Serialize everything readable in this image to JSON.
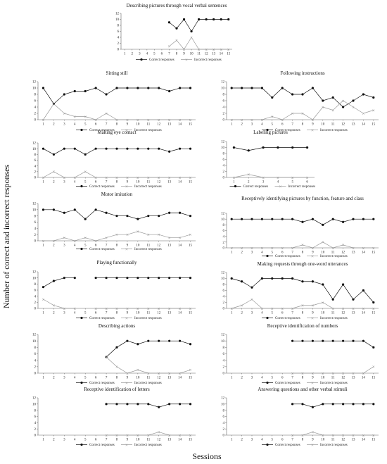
{
  "figure": {
    "ylabel": "Number of correct and incorrect responses",
    "xlabel": "Sessions"
  },
  "colors": {
    "correct": "#111111",
    "incorrect": "#999999",
    "axis": "#666666"
  },
  "chart_data": [
    {
      "type": "line",
      "title": "Describing pictures through vocal verbal sentences",
      "x": [
        1,
        2,
        3,
        4,
        5,
        6,
        7,
        8,
        9,
        10,
        11,
        12,
        13,
        14,
        15
      ],
      "yticks": [
        0,
        2,
        4,
        6,
        8,
        10,
        12
      ],
      "ylim": [
        0,
        12
      ],
      "series": [
        {
          "name": "Correct responses",
          "values": [
            null,
            null,
            null,
            null,
            null,
            null,
            9,
            7,
            10,
            6,
            10,
            10,
            10,
            10,
            10
          ]
        },
        {
          "name": "Incorrect responses",
          "values": [
            null,
            null,
            null,
            null,
            null,
            null,
            1,
            3,
            0,
            4,
            0,
            0,
            0,
            0,
            0
          ]
        }
      ]
    },
    {
      "type": "line",
      "title": "Sitting still",
      "x": [
        1,
        2,
        3,
        4,
        5,
        6,
        7,
        8,
        9,
        10,
        11,
        12,
        13,
        14,
        15
      ],
      "yticks": [
        0,
        2,
        4,
        6,
        8,
        10,
        12
      ],
      "ylim": [
        0,
        12
      ],
      "series": [
        {
          "name": "Correct responses",
          "values": [
            10,
            5,
            8,
            9,
            9,
            10,
            8,
            10,
            10,
            10,
            10,
            10,
            9,
            10,
            10
          ]
        },
        {
          "name": "Incorrect responses",
          "values": [
            0,
            5,
            2,
            1,
            1,
            0,
            2,
            0,
            0,
            0,
            0,
            0,
            0,
            0,
            0
          ]
        }
      ]
    },
    {
      "type": "line",
      "title": "Following instructions",
      "x": [
        1,
        2,
        3,
        4,
        5,
        6,
        7,
        8,
        9,
        10,
        11,
        12,
        13,
        14,
        15
      ],
      "yticks": [
        0,
        2,
        4,
        6,
        8,
        10,
        12
      ],
      "ylim": [
        0,
        12
      ],
      "series": [
        {
          "name": "Correct responses",
          "values": [
            10,
            10,
            10,
            10,
            7,
            10,
            8,
            8,
            10,
            6,
            7,
            4,
            6,
            8,
            7
          ]
        },
        {
          "name": "Incorrect responses",
          "values": [
            0,
            0,
            0,
            0,
            1,
            0,
            2,
            2,
            0,
            4,
            3,
            6,
            4,
            2,
            3
          ]
        }
      ]
    },
    {
      "type": "line",
      "title": "Making eye contact",
      "x": [
        1,
        2,
        3,
        4,
        5,
        6,
        7,
        8,
        9,
        10,
        11,
        12,
        13,
        14,
        15
      ],
      "yticks": [
        0,
        2,
        4,
        6,
        8,
        10,
        12
      ],
      "ylim": [
        0,
        12
      ],
      "series": [
        {
          "name": "Correct responses",
          "values": [
            10,
            8,
            10,
            10,
            8,
            10,
            10,
            10,
            10,
            10,
            10,
            10,
            9,
            10,
            10
          ]
        },
        {
          "name": "Incorrect responses",
          "values": [
            0,
            2,
            0,
            0,
            2,
            0,
            0,
            0,
            0,
            0,
            0,
            0,
            0,
            0,
            0
          ]
        }
      ]
    },
    {
      "type": "line",
      "title": "Labeling pictures",
      "x": [
        1,
        2,
        3,
        4,
        5,
        6
      ],
      "yticks": [
        0,
        2,
        4,
        6,
        8,
        10,
        12
      ],
      "ylim": [
        0,
        12
      ],
      "series": [
        {
          "name": "Correct responses",
          "values": [
            10,
            9,
            10,
            10,
            10,
            10
          ]
        },
        {
          "name": "Incorrect responses",
          "values": [
            0,
            1,
            0,
            0,
            0,
            0
          ]
        }
      ]
    },
    {
      "type": "line",
      "title": "Motor imitation",
      "x": [
        1,
        2,
        3,
        4,
        5,
        6,
        7,
        8,
        9,
        10,
        11,
        12,
        13,
        14,
        15
      ],
      "yticks": [
        0,
        2,
        4,
        6,
        8,
        10,
        12
      ],
      "ylim": [
        0,
        12
      ],
      "series": [
        {
          "name": "Correct responses",
          "values": [
            10,
            10,
            9,
            10,
            7,
            10,
            9,
            8,
            8,
            7,
            8,
            8,
            9,
            9,
            8
          ]
        },
        {
          "name": "Incorrect responses",
          "values": [
            0,
            0,
            1,
            0,
            1,
            0,
            1,
            2,
            2,
            3,
            2,
            2,
            1,
            1,
            2
          ]
        }
      ]
    },
    {
      "type": "line",
      "title": "Receptively identifying pictures by function, feature and class",
      "x": [
        1,
        2,
        3,
        4,
        5,
        6,
        7,
        8,
        9,
        10,
        11,
        12,
        13,
        14,
        15
      ],
      "yticks": [
        0,
        2,
        4,
        6,
        8,
        10,
        12
      ],
      "ylim": [
        0,
        12
      ],
      "series": [
        {
          "name": "Correct responses",
          "values": [
            10,
            10,
            10,
            10,
            10,
            10,
            10,
            9,
            10,
            8,
            10,
            9,
            10,
            10,
            10
          ]
        },
        {
          "name": "Incorrect responses",
          "values": [
            0,
            0,
            0,
            0,
            0,
            0,
            0,
            1,
            0,
            2,
            0,
            1,
            0,
            0,
            0
          ]
        }
      ]
    },
    {
      "type": "line",
      "title": "Playing functionally",
      "x": [
        1,
        2,
        3,
        4,
        5,
        6,
        7,
        8,
        9,
        10,
        11,
        12,
        13,
        14,
        15
      ],
      "yticks": [
        0,
        2,
        4,
        6,
        8,
        10,
        12
      ],
      "ylim": [
        0,
        12
      ],
      "series": [
        {
          "name": "Correct responses",
          "values": [
            7,
            9,
            10,
            10,
            null,
            10,
            10,
            10,
            10,
            10,
            10,
            10,
            10,
            10,
            10
          ]
        },
        {
          "name": "Incorrect responses",
          "values": [
            3,
            1,
            0,
            0,
            null,
            0,
            0,
            0,
            0,
            0,
            0,
            0,
            0,
            0,
            0
          ]
        }
      ]
    },
    {
      "type": "line",
      "title": "Making requests through one-word utterances",
      "x": [
        1,
        2,
        3,
        4,
        5,
        6,
        7,
        8,
        9,
        10,
        11,
        12,
        13,
        14,
        15
      ],
      "yticks": [
        0,
        2,
        4,
        6,
        8,
        10,
        12
      ],
      "ylim": [
        0,
        12
      ],
      "series": [
        {
          "name": "Correct responses",
          "values": [
            10,
            9,
            7,
            10,
            10,
            10,
            10,
            9,
            9,
            8,
            3,
            8,
            3,
            6,
            2
          ]
        },
        {
          "name": "Incorrect responses",
          "values": [
            0,
            1,
            3,
            0,
            0,
            0,
            0,
            1,
            1,
            2,
            0,
            0,
            0,
            0,
            0
          ]
        }
      ]
    },
    {
      "type": "line",
      "title": "Describing actions",
      "x": [
        1,
        2,
        3,
        4,
        5,
        6,
        7,
        8,
        9,
        10,
        11,
        12,
        13,
        14,
        15
      ],
      "yticks": [
        0,
        2,
        4,
        6,
        8,
        10,
        12
      ],
      "ylim": [
        0,
        12
      ],
      "series": [
        {
          "name": "Correct responses",
          "values": [
            null,
            null,
            null,
            null,
            null,
            null,
            5,
            8,
            10,
            9,
            10,
            10,
            10,
            10,
            9
          ]
        },
        {
          "name": "Incorrect responses",
          "values": [
            null,
            null,
            null,
            null,
            null,
            null,
            5,
            2,
            0,
            1,
            0,
            0,
            0,
            0,
            1
          ]
        }
      ]
    },
    {
      "type": "line",
      "title": "Receptive identification of numbers",
      "x": [
        1,
        2,
        3,
        4,
        5,
        6,
        7,
        8,
        9,
        10,
        11,
        12,
        13,
        14,
        15
      ],
      "yticks": [
        0,
        2,
        4,
        6,
        8,
        10,
        12
      ],
      "ylim": [
        0,
        12
      ],
      "series": [
        {
          "name": "Correct responses",
          "values": [
            null,
            null,
            null,
            null,
            null,
            null,
            10,
            10,
            10,
            10,
            10,
            10,
            10,
            10,
            8
          ]
        },
        {
          "name": "Incorrect responses",
          "values": [
            null,
            null,
            null,
            null,
            null,
            null,
            0,
            0,
            0,
            0,
            0,
            0,
            0,
            0,
            2
          ]
        }
      ]
    },
    {
      "type": "line",
      "title": "Receptive identification of letters",
      "x": [
        1,
        2,
        3,
        4,
        5,
        6,
        7,
        8,
        9,
        10,
        11,
        12,
        13,
        14,
        15
      ],
      "yticks": [
        0,
        2,
        4,
        6,
        8,
        10,
        12
      ],
      "ylim": [
        0,
        12
      ],
      "series": [
        {
          "name": "Correct responses",
          "values": [
            null,
            null,
            null,
            null,
            null,
            null,
            10,
            10,
            10,
            10,
            10,
            9,
            10,
            10,
            10
          ]
        },
        {
          "name": "Incorrect responses",
          "values": [
            null,
            null,
            null,
            null,
            null,
            null,
            0,
            0,
            0,
            0,
            0,
            1,
            0,
            0,
            0
          ]
        }
      ]
    },
    {
      "type": "line",
      "title": "Answering questions and other verbal stimuli",
      "x": [
        1,
        2,
        3,
        4,
        5,
        6,
        7,
        8,
        9,
        10,
        11,
        12,
        13,
        14,
        15
      ],
      "yticks": [
        0,
        2,
        4,
        6,
        8,
        10,
        12
      ],
      "ylim": [
        0,
        12
      ],
      "series": [
        {
          "name": "Correct responses",
          "values": [
            null,
            null,
            null,
            null,
            null,
            null,
            10,
            10,
            9,
            10,
            10,
            10,
            10,
            10,
            10
          ]
        },
        {
          "name": "Incorrect responses",
          "values": [
            null,
            null,
            null,
            null,
            null,
            null,
            0,
            0,
            1,
            0,
            0,
            0,
            0,
            0,
            0
          ]
        }
      ]
    }
  ]
}
